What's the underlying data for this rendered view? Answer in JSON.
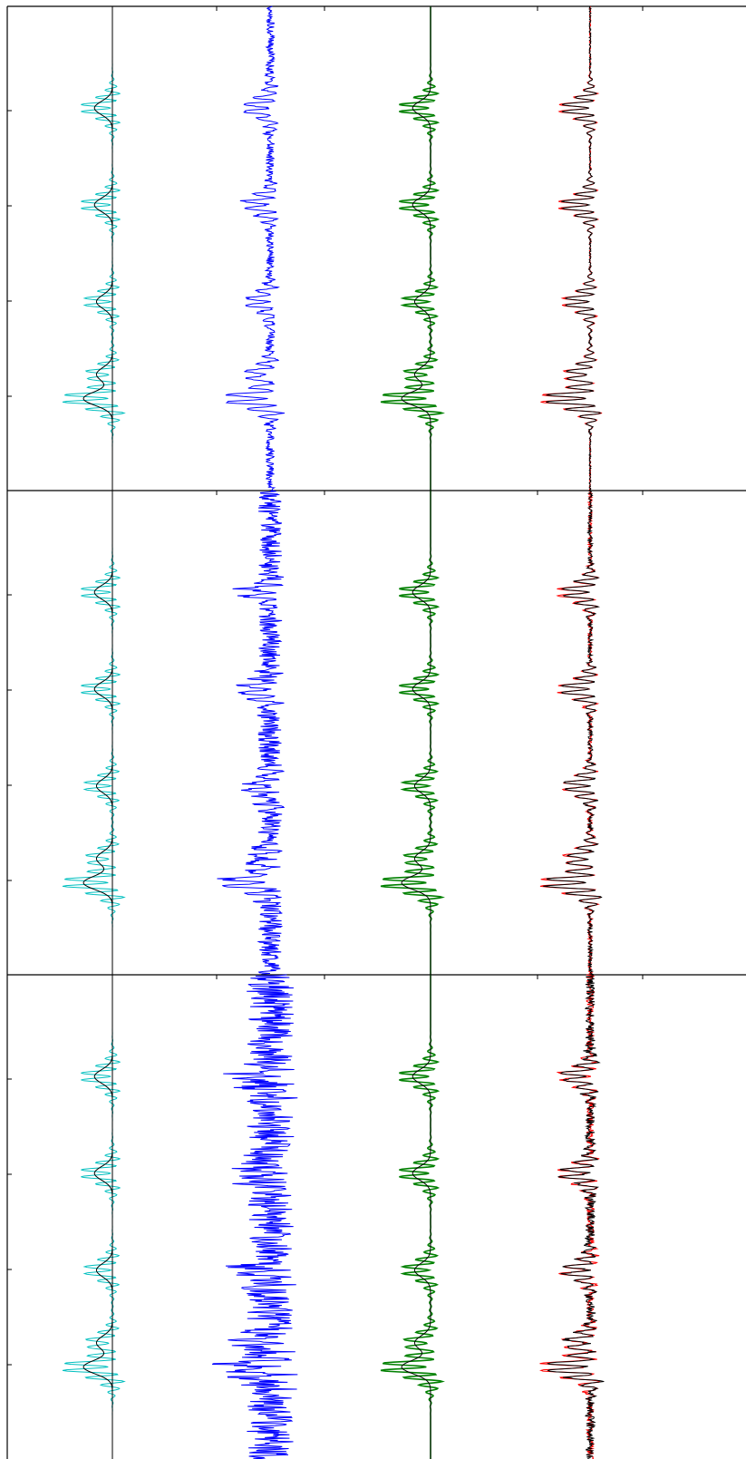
{
  "figure": {
    "background": "#ffffff",
    "axis_color": "#000000"
  },
  "chart_data": [
    {
      "type": "line",
      "panel": "top",
      "noise_level": "low",
      "xlabel": "",
      "ylabel": "",
      "title": "",
      "grid": false,
      "y_ticks": [
        0.25,
        0.5,
        0.75,
        1.0
      ],
      "x_ticks": [
        1,
        2,
        3,
        4,
        5,
        6
      ],
      "series": [
        {
          "color": "#00bfbf",
          "channel": 0,
          "values": [
            0.0,
            0.0,
            0.0,
            0.0,
            0.0,
            -1.0,
            0.0,
            0.0,
            0.0,
            0.0,
            -1.0,
            0.0,
            0.0,
            0.0,
            0.0,
            -0.9,
            0.0,
            0.0,
            0.0,
            -1.0,
            -0.6,
            -1.0,
            0.0,
            0.0,
            0.0,
            0.0
          ]
        },
        {
          "color": "#0000ff",
          "channel": 1,
          "values": [
            0.1,
            -0.1,
            0.2,
            -0.1,
            0.0,
            -0.6,
            0.2,
            -0.1,
            0.1,
            0.0,
            -0.7,
            0.1,
            -0.2,
            0.0,
            0.1,
            -0.5,
            0.2,
            0.0,
            -0.1,
            -0.8,
            -0.5,
            -1.0,
            0.1,
            -0.1,
            0.0,
            0.1
          ]
        },
        {
          "color": "#008000",
          "channel": 2,
          "values": [
            0.0,
            0.0,
            0.0,
            0.0,
            0.0,
            -1.0,
            0.0,
            0.0,
            0.0,
            0.0,
            -1.0,
            0.0,
            0.0,
            0.0,
            0.0,
            -0.9,
            0.0,
            0.0,
            0.0,
            -1.0,
            -0.6,
            -1.0,
            0.0,
            0.0,
            0.0,
            0.0
          ]
        },
        {
          "color": "#ff0000",
          "channel": 3,
          "values": [
            0.0,
            0.0,
            0.0,
            0.0,
            0.0,
            -1.0,
            0.0,
            0.0,
            0.0,
            0.0,
            -1.0,
            0.0,
            0.0,
            0.0,
            0.0,
            -0.9,
            0.0,
            0.0,
            0.0,
            -1.0,
            -0.6,
            -1.0,
            0.0,
            0.0,
            0.0,
            0.0
          ]
        }
      ]
    },
    {
      "type": "line",
      "panel": "middle",
      "noise_level": "medium",
      "xlabel": "",
      "ylabel": "",
      "title": "",
      "grid": false,
      "y_ticks": [
        0.25,
        0.5,
        0.75,
        1.0
      ],
      "x_ticks": [
        1,
        2,
        3,
        4,
        5,
        6
      ],
      "series": [
        {
          "color": "#00bfbf",
          "channel": 0,
          "values": [
            0.0,
            0.0,
            0.0,
            0.0,
            0.0,
            -1.0,
            0.0,
            0.0,
            0.0,
            0.0,
            -1.0,
            0.0,
            0.0,
            0.0,
            0.0,
            -0.9,
            0.0,
            0.0,
            0.0,
            -1.0,
            -0.6,
            -1.0,
            0.0,
            0.0,
            0.0,
            0.0
          ]
        },
        {
          "color": "#0000ff",
          "channel": 1,
          "values": [
            0.2,
            -0.3,
            0.4,
            -0.2,
            0.1,
            -0.6,
            0.3,
            -0.3,
            0.2,
            0.1,
            -0.8,
            0.2,
            -0.3,
            0.1,
            0.2,
            -0.6,
            0.3,
            -0.1,
            -0.2,
            -0.9,
            -0.6,
            -1.0,
            0.3,
            -0.2,
            0.1,
            0.2
          ]
        },
        {
          "color": "#008000",
          "channel": 2,
          "values": [
            0.0,
            0.0,
            0.0,
            0.0,
            0.0,
            -1.0,
            0.0,
            0.0,
            0.0,
            0.0,
            -1.0,
            0.0,
            0.0,
            0.0,
            0.0,
            -0.9,
            0.0,
            0.0,
            0.0,
            -1.0,
            -0.6,
            -1.0,
            0.0,
            0.0,
            0.0,
            0.0
          ]
        },
        {
          "color": "#ff0000",
          "channel": 3,
          "values": [
            0.0,
            0.0,
            0.0,
            0.0,
            0.0,
            -1.0,
            0.0,
            0.0,
            0.0,
            0.0,
            -1.0,
            0.0,
            0.0,
            0.0,
            0.0,
            -0.9,
            0.0,
            0.0,
            0.0,
            -1.0,
            -0.6,
            -1.0,
            0.0,
            0.0,
            0.0,
            0.0
          ]
        }
      ]
    },
    {
      "type": "line",
      "panel": "bottom",
      "noise_level": "high",
      "xlabel": "",
      "ylabel": "",
      "title": "",
      "grid": false,
      "y_ticks": [
        0.25,
        0.5,
        0.75,
        1.0
      ],
      "x_ticks": [
        1,
        2,
        3,
        4,
        5,
        6
      ],
      "series": [
        {
          "color": "#00bfbf",
          "channel": 0,
          "values": [
            0.0,
            0.0,
            0.0,
            0.0,
            0.0,
            -1.0,
            0.0,
            0.0,
            0.0,
            0.0,
            -1.0,
            0.0,
            0.0,
            0.0,
            0.0,
            -0.9,
            0.0,
            0.0,
            0.0,
            -1.0,
            -0.6,
            -1.0,
            0.0,
            0.0,
            0.0,
            0.0
          ]
        },
        {
          "color": "#0000ff",
          "channel": 1,
          "values": [
            0.5,
            -0.6,
            0.8,
            -0.5,
            0.3,
            -0.7,
            0.6,
            -0.6,
            0.5,
            0.2,
            -0.9,
            0.4,
            -0.6,
            0.3,
            0.5,
            -0.8,
            0.6,
            -0.3,
            -0.5,
            -1.0,
            -0.7,
            -1.1,
            0.6,
            -0.5,
            0.3,
            0.5
          ]
        },
        {
          "color": "#008000",
          "channel": 2,
          "values": [
            0.0,
            0.0,
            0.0,
            0.0,
            0.0,
            -1.0,
            0.0,
            0.0,
            0.0,
            0.0,
            -1.0,
            0.0,
            0.0,
            0.0,
            0.0,
            -0.9,
            0.0,
            0.0,
            0.0,
            -1.0,
            -0.6,
            -1.0,
            0.0,
            0.0,
            0.0,
            0.0
          ]
        },
        {
          "color": "#ff0000",
          "channel": 3,
          "values": [
            0.0,
            0.0,
            0.0,
            0.0,
            0.0,
            -1.0,
            0.0,
            0.0,
            0.0,
            0.0,
            -1.0,
            0.0,
            0.0,
            0.0,
            0.0,
            -0.9,
            0.0,
            0.0,
            0.0,
            -1.0,
            -0.6,
            -1.0,
            0.0,
            0.0,
            0.0,
            0.0
          ]
        }
      ]
    }
  ]
}
